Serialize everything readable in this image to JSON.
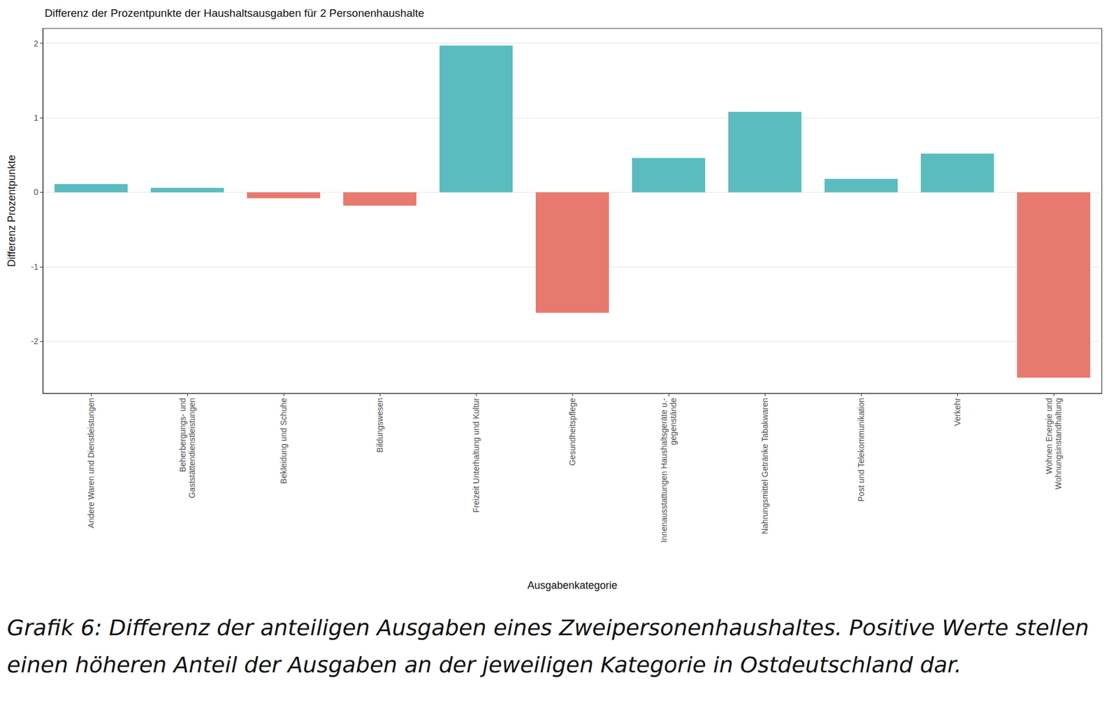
{
  "chart_data": {
    "type": "bar",
    "title": "Differenz der Prozentpunkte der Haushaltsausgaben für 2 Personenhaushalte",
    "x_label": "Ausgabenkategorie",
    "y_label": "Differenz Prozentpunkte",
    "categories": [
      "Andere Waren und Dienstleistungen",
      "Beherbergungs- und\nGaststättendienstleistungen",
      "Bekleidung und Schuhe",
      "Bildungswesen",
      "Freizeit Unterhaltung und Kultur",
      "Gesundheitspflege",
      "Innenausstattungen Haushaltsgeräte u.-\ngegenstände",
      "Nahrungsmittel Getränke Tabakwaren",
      "Post und Telekommunikation",
      "Verkehr",
      "Wohnen Energie und\nWohnungsinstandhaltung"
    ],
    "values": [
      0.11,
      0.06,
      -0.08,
      -0.18,
      1.97,
      -1.62,
      0.46,
      1.08,
      0.18,
      0.52,
      -2.49
    ],
    "colors": [
      "#5bbcc0",
      "#5bbcc0",
      "#e8796f",
      "#e8796f",
      "#5bbcc0",
      "#e8796f",
      "#5bbcc0",
      "#5bbcc0",
      "#5bbcc0",
      "#5bbcc0",
      "#e8796f"
    ],
    "ylim": [
      -2.7,
      2.2
    ],
    "yticks": [
      -2,
      -1,
      0,
      1,
      2
    ],
    "grid": true,
    "caption": "Grafik 6: Differenz der anteiligen Ausgaben eines Zweipersonenhaushaltes. Positive Werte stellen einen höheren Anteil der Ausgaben an der jeweiligen Kategorie in Ostdeutschland dar."
  }
}
